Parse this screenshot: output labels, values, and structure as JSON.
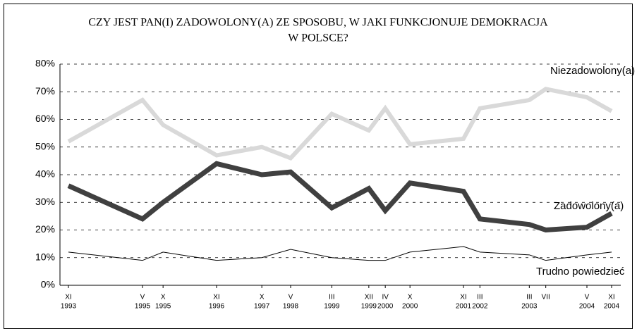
{
  "chart_data": {
    "type": "line",
    "title": [
      "CZY JEST PAN(I) ZADOWOLONY(A) ZE SPOSOBU, W JAKI FUNKCJONUJE DEMOKRACJA",
      "W POLSCE?"
    ],
    "categories": [
      [
        "XI",
        "1993"
      ],
      [
        "V",
        "1995"
      ],
      [
        "X",
        "1995"
      ],
      [
        "XI",
        "1996"
      ],
      [
        "X",
        "1997"
      ],
      [
        "V",
        "1998"
      ],
      [
        "III",
        "1999"
      ],
      [
        "XII",
        "1999"
      ],
      [
        "IV",
        "2000"
      ],
      [
        "X",
        "2000"
      ],
      [
        "XI",
        "2001"
      ],
      [
        "III",
        "2002"
      ],
      [
        "III",
        "2003"
      ],
      [
        "VII",
        null
      ],
      [
        "V",
        "2004"
      ],
      [
        "XI",
        "2004"
      ]
    ],
    "series": [
      {
        "name": "Niezadowolony(a)",
        "color": "#d9d9d9",
        "values": [
          52,
          67,
          58,
          47,
          50,
          46,
          62,
          56,
          64,
          51,
          53,
          64,
          67,
          71,
          68,
          63
        ]
      },
      {
        "name": "Zadowolony(a)",
        "color": "#404040",
        "values": [
          36,
          24,
          30,
          44,
          40,
          41,
          28,
          35,
          27,
          37,
          34,
          24,
          22,
          20,
          21,
          26
        ]
      },
      {
        "name": "Trudno powiedzieć",
        "color": "#000000",
        "values": [
          12,
          9,
          12,
          9,
          10,
          13,
          10,
          9,
          9,
          12,
          14,
          12,
          11,
          9,
          11,
          12
        ]
      }
    ],
    "ylim": [
      0,
      80
    ],
    "yticks": [
      {
        "value": 0,
        "label": "0%"
      },
      {
        "value": 10,
        "label": "10%"
      },
      {
        "value": 20,
        "label": "20%"
      },
      {
        "value": 30,
        "label": "30%"
      },
      {
        "value": 40,
        "label": "40%"
      },
      {
        "value": 50,
        "label": "50%"
      },
      {
        "value": 60,
        "label": "60%"
      },
      {
        "value": 70,
        "label": "70%"
      },
      {
        "value": 80,
        "label": "80%"
      }
    ],
    "grid": true
  }
}
